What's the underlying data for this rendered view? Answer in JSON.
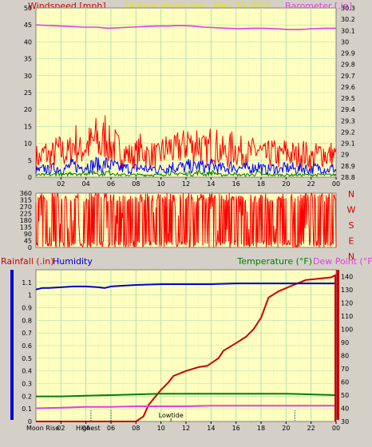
{
  "chart_data": [
    {
      "type": "line",
      "title": "24 hour graph day : May 30 2021",
      "ylabel": "Windspeed [mph]",
      "y2label": "Barometer [.in]",
      "x_ticks": [
        "02",
        "04",
        "06",
        "08",
        "10",
        "12",
        "14",
        "16",
        "18",
        "20",
        "22",
        "00"
      ],
      "y_ticks": [
        "0",
        "5",
        "10",
        "15",
        "20",
        "25",
        "30",
        "35",
        "40",
        "45",
        "50"
      ],
      "ylim": [
        0,
        50
      ],
      "y2_ticks": [
        "28.8",
        "28.9",
        "29",
        "29.1",
        "29.2",
        "29.3",
        "29.4",
        "29.5",
        "29.6",
        "29.7",
        "29.8",
        "29.9",
        "30",
        "30.1",
        "30.2",
        "30.3"
      ],
      "y2lim": [
        28.8,
        30.3
      ],
      "series": [
        {
          "role": "gust",
          "color": "#ff0000",
          "values": [
            9,
            8,
            11,
            9,
            10,
            12,
            11,
            10,
            12,
            16,
            11,
            13,
            14,
            15,
            17,
            12,
            20,
            13,
            14,
            12,
            11,
            10,
            9,
            10,
            12,
            11,
            9,
            10,
            9,
            11,
            12,
            13,
            11,
            14,
            13,
            17,
            12,
            16,
            13,
            11,
            14,
            15,
            12,
            11,
            10,
            13,
            12,
            11,
            12,
            10,
            11,
            12,
            10,
            9,
            11,
            10,
            9,
            11,
            10,
            10,
            9,
            11,
            10,
            8,
            9,
            10,
            11,
            9,
            10,
            9
          ]
        },
        {
          "role": "average",
          "color": "#0000ff",
          "values": [
            3,
            3,
            4,
            3,
            4,
            4,
            3,
            4,
            5,
            5,
            4,
            5,
            5,
            5,
            6,
            4,
            6,
            5,
            5,
            4,
            4,
            4,
            3,
            4,
            4,
            4,
            3,
            4,
            3,
            4,
            4,
            5,
            4,
            5,
            4,
            5,
            4,
            5,
            5,
            4,
            5,
            5,
            4,
            4,
            4,
            5,
            4,
            4,
            4,
            4,
            4,
            5,
            4,
            3,
            4,
            4,
            3,
            4,
            4,
            4,
            3,
            4,
            4,
            3,
            4,
            4,
            4,
            3,
            4,
            3
          ]
        },
        {
          "role": "lull",
          "color": "#008000",
          "values": [
            1,
            1,
            1,
            1,
            1,
            2,
            1,
            1,
            2,
            2,
            1,
            2,
            2,
            2,
            2,
            1,
            2,
            2,
            2,
            1,
            1,
            1,
            1,
            1,
            1,
            1,
            1,
            1,
            1,
            1,
            2,
            2,
            1,
            2,
            1,
            2,
            1,
            2,
            2,
            1,
            2,
            2,
            1,
            1,
            1,
            2,
            1,
            1,
            1,
            1,
            1,
            2,
            1,
            1,
            1,
            1,
            1,
            1,
            1,
            1,
            1,
            1,
            1,
            1,
            1,
            1,
            1,
            1,
            1,
            1
          ]
        },
        {
          "role": "barometer",
          "color": "#e040e0",
          "axis": "y2",
          "values": [
            30.15,
            30.145,
            30.14,
            30.135,
            30.13,
            30.13,
            30.12,
            30.125,
            30.13,
            30.135,
            30.14,
            30.14,
            30.145,
            30.14,
            30.13,
            30.125,
            30.12,
            30.115,
            30.12,
            30.12,
            30.115,
            30.11,
            30.11,
            30.115,
            30.12,
            30.12
          ]
        }
      ]
    },
    {
      "type": "scatter",
      "y_ticks": [
        "0",
        "45",
        "90",
        "135",
        "180",
        "225",
        "270",
        "315",
        "360"
      ],
      "ylim": [
        0,
        360
      ],
      "compass": [
        "N",
        "W",
        "S",
        "E",
        "N"
      ],
      "series": [
        {
          "role": "wind-direction",
          "color": "#ff0000"
        }
      ]
    },
    {
      "type": "line",
      "ylabel": "Rainfall (.in)",
      "ylabel2": "Humidity",
      "y2label": "Temperature (°F)",
      "y3label": "Dew Point (°F)",
      "x_ticks": [
        "02",
        "04",
        "06",
        "08",
        "10",
        "12",
        "14",
        "16",
        "18",
        "20",
        "22",
        "00"
      ],
      "y_ticks_left": [
        "0",
        "0.1",
        "0.2",
        "0.3",
        "0.4",
        "0.5",
        "0.6",
        "0.7",
        "0.8",
        "0.9",
        "1",
        "1.1"
      ],
      "ylim_left": [
        0,
        1.2
      ],
      "y_ticks_humidity": [
        "0",
        "10",
        "20",
        "30",
        "40",
        "50",
        "60",
        "70",
        "80",
        "90",
        "100"
      ],
      "ylim_humidity": [
        0,
        100
      ],
      "y_ticks_right": [
        "30",
        "40",
        "50",
        "60",
        "70",
        "80",
        "90",
        "100",
        "110",
        "120",
        "130",
        "140"
      ],
      "ylim_right": [
        30,
        145
      ],
      "events": [
        "Moon Rise",
        "Highest",
        "Lowtide"
      ],
      "series": [
        {
          "role": "rainfall",
          "color": "#cc0000",
          "axis": "left",
          "x": [
            0,
            5,
            8,
            8.6,
            9,
            10,
            10.6,
            11,
            12,
            13,
            13.7,
            14,
            14.6,
            15,
            16,
            16.8,
            17.4,
            18,
            18.3,
            18.6,
            19.4,
            20.6,
            21.6,
            23.6,
            24
          ],
          "values": [
            0,
            0,
            0,
            0.04,
            0.13,
            0.25,
            0.31,
            0.36,
            0.4,
            0.43,
            0.44,
            0.46,
            0.5,
            0.56,
            0.62,
            0.67,
            0.73,
            0.82,
            0.9,
            0.98,
            1.03,
            1.08,
            1.12,
            1.14,
            1.16
          ]
        },
        {
          "role": "humidity",
          "color": "#0000cc",
          "axis": "humidity",
          "x": [
            0,
            0.5,
            1,
            2,
            3,
            4,
            5,
            5.5,
            6,
            7,
            8,
            10,
            12,
            14,
            16,
            18,
            20,
            22,
            23,
            24
          ],
          "values": [
            87,
            88,
            88,
            88.5,
            89,
            89,
            88.5,
            88,
            89,
            89.5,
            90,
            90.5,
            90.5,
            90.5,
            91,
            91,
            91,
            91,
            91,
            91
          ]
        },
        {
          "role": "temperature",
          "color": "#008000",
          "axis": "right",
          "x": [
            0,
            2,
            4,
            6,
            8,
            10,
            12,
            14,
            16,
            18,
            20,
            22,
            24
          ],
          "values": [
            49,
            49,
            49.5,
            50,
            50.5,
            51,
            51,
            51,
            51,
            51,
            51,
            50.5,
            50
          ]
        },
        {
          "role": "dew-point",
          "color": "#e040e0",
          "axis": "right",
          "x": [
            0,
            2,
            4,
            6,
            8,
            10,
            12,
            14,
            16,
            18,
            20,
            22,
            24
          ],
          "values": [
            40,
            40.5,
            41,
            41,
            41.5,
            41.5,
            41.5,
            42,
            42,
            42,
            42,
            42,
            42
          ]
        }
      ]
    }
  ]
}
